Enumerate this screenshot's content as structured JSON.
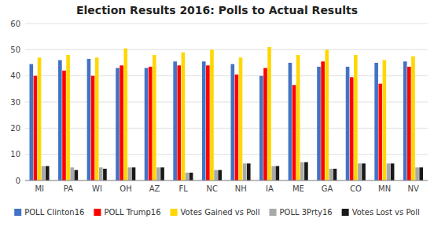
{
  "chart_data": {
    "type": "bar",
    "title": "Election Results 2016: Polls to Actual Results",
    "categories": [
      "MI",
      "PA",
      "WI",
      "OH",
      "AZ",
      "FL",
      "NC",
      "NH",
      "IA",
      "ME",
      "GA",
      "CO",
      "MN",
      "NV"
    ],
    "series": [
      {
        "name": "POLL Clinton16",
        "color": "#4472C4",
        "values": [
          44.5,
          46.0,
          46.5,
          43.0,
          43.0,
          45.5,
          45.5,
          44.5,
          40.0,
          45.0,
          43.5,
          43.5,
          45.0,
          45.5
        ]
      },
      {
        "name": "POLL Trump16",
        "color": "#FF0000",
        "values": [
          40.0,
          42.0,
          40.0,
          44.0,
          43.5,
          44.0,
          44.0,
          40.5,
          43.0,
          36.5,
          45.5,
          39.5,
          37.0,
          43.5
        ]
      },
      {
        "name": "Votes Gained vs Poll",
        "color": "#FFD700",
        "values": [
          47.0,
          48.0,
          47.0,
          50.5,
          48.0,
          49.0,
          50.0,
          47.0,
          51.0,
          48.0,
          50.0,
          48.0,
          46.0,
          47.5
        ]
      },
      {
        "name": "POLL 3Prty16",
        "color": "#A9A9A9",
        "values": [
          5.5,
          5.0,
          5.0,
          5.0,
          5.0,
          3.0,
          4.0,
          6.5,
          5.5,
          7.0,
          4.5,
          6.5,
          6.5,
          5.0
        ]
      },
      {
        "name": "Votes Lost vs Poll",
        "color": "#1A1A1A",
        "values": [
          5.5,
          4.0,
          4.5,
          5.0,
          5.0,
          3.0,
          4.0,
          6.5,
          5.5,
          7.0,
          4.5,
          6.5,
          6.5,
          5.0
        ]
      }
    ],
    "ylim": [
      0,
      60
    ],
    "yticks": [
      0,
      10,
      20,
      30,
      40,
      50,
      60
    ],
    "grid": true,
    "legend": "bottom"
  }
}
